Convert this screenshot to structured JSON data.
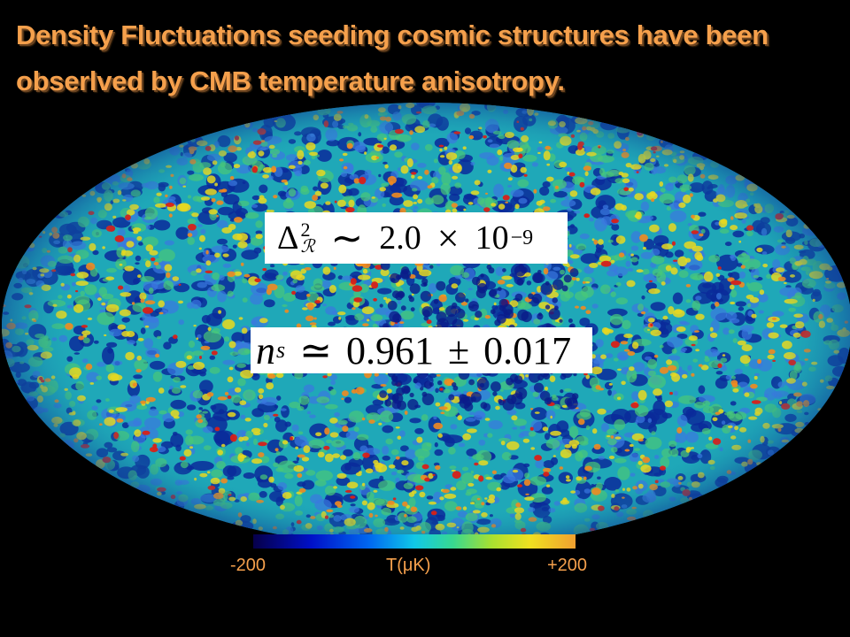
{
  "title": {
    "line1": "Density Fluctuations seeding cosmic structures have been",
    "line2": "obserlved by CMB temperature anisotropy."
  },
  "formula1": {
    "symbol": "Δ",
    "superscript": "2",
    "subscript": "ℛ",
    "relation": "∼",
    "mantissa": "2.0",
    "times": "×",
    "base": "10",
    "exponent": "−9"
  },
  "formula2": {
    "symbol": "n",
    "subscript": "s",
    "relation": "≃",
    "value": "0.961",
    "pm": "±",
    "error": "0.017"
  },
  "colorbar": {
    "min_label": "-200",
    "unit_label": "T(μK)",
    "max_label": "+200"
  },
  "colors": {
    "title": "#f5a04c",
    "background": "#000000",
    "map_base": "#1fa8b8",
    "map_cold": "#0a2a9a",
    "map_warm": "#e8d820",
    "map_hot": "#d82018"
  }
}
